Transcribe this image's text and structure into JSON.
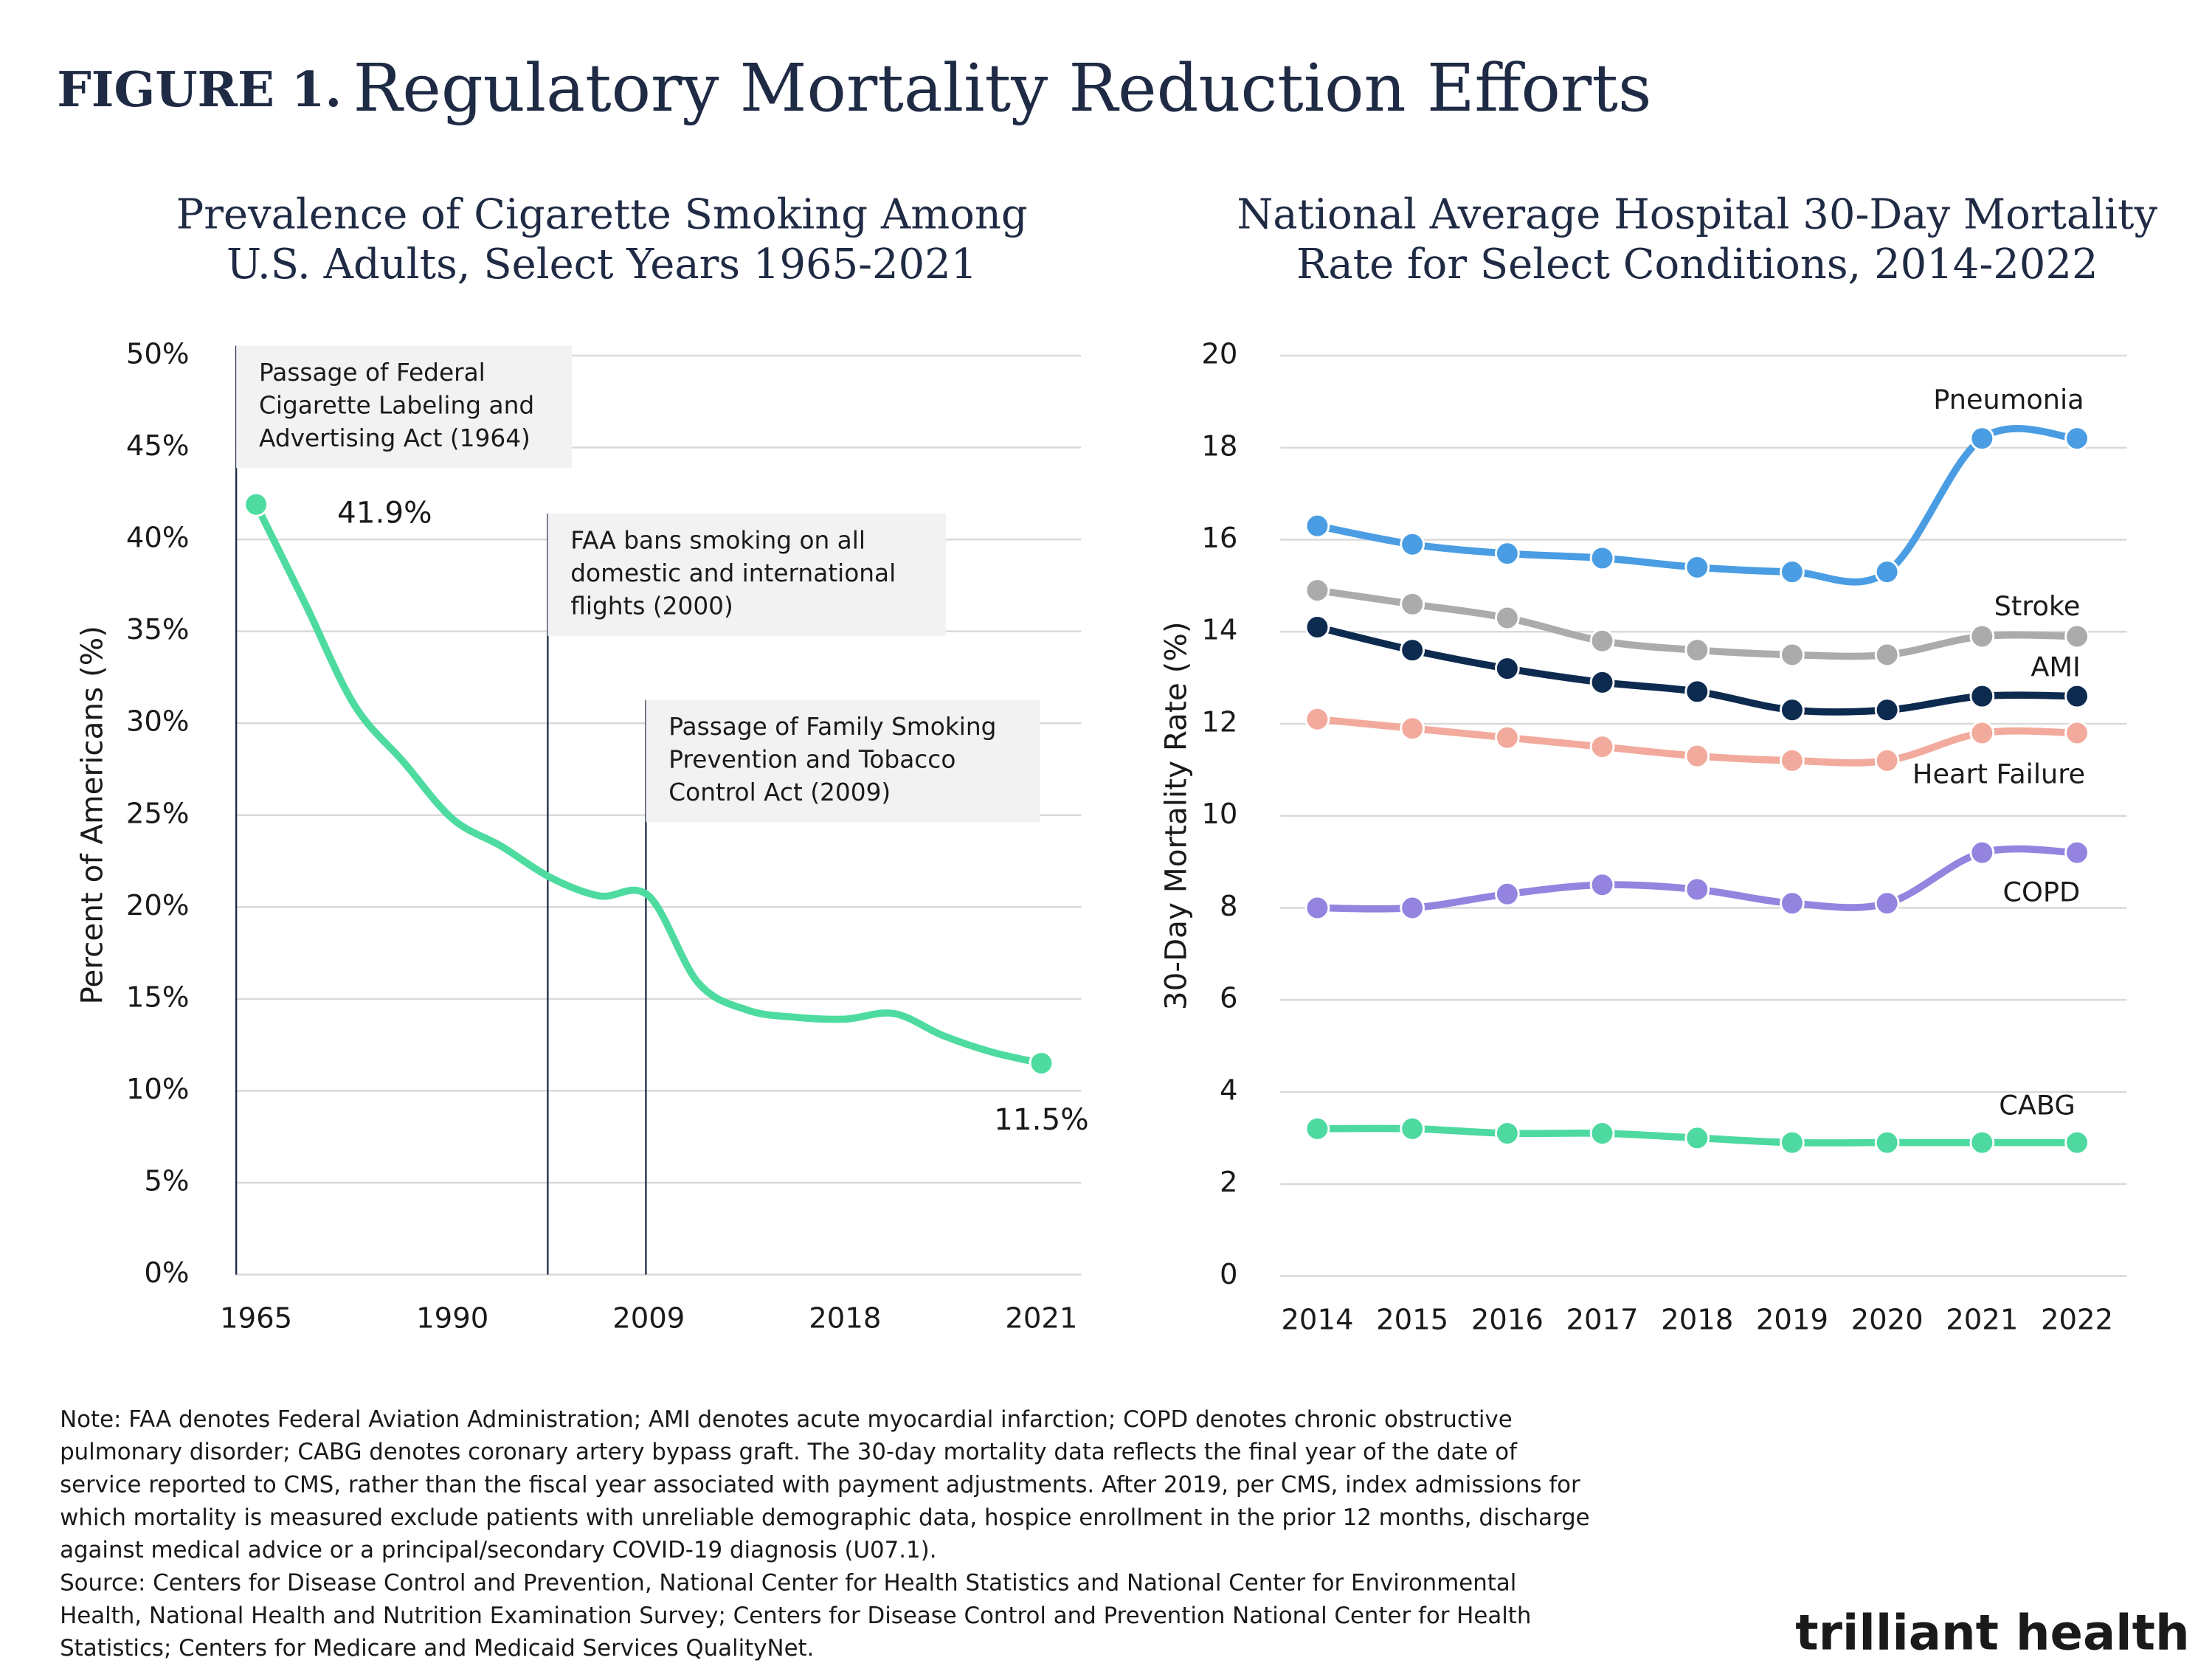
{
  "figure": {
    "label": "FIGURE 1.",
    "title": "Regulatory Mortality Reduction Efforts"
  },
  "chart_data": [
    {
      "type": "line",
      "title": [
        "Prevalence of Cigarette Smoking Among",
        "U.S. Adults, Select Years 1965-2021"
      ],
      "y_label": "Percent of Americans (%)",
      "categories": [
        "1965",
        null,
        null,
        null,
        "1990",
        null,
        null,
        null,
        "2009",
        null,
        null,
        null,
        "2018",
        null,
        null,
        null,
        "2021"
      ],
      "values": [
        41.9,
        36.5,
        31.0,
        27.9,
        24.8,
        23.3,
        21.6,
        20.6,
        20.6,
        15.9,
        14.4,
        14.0,
        13.9,
        14.2,
        13.0,
        12.1,
        11.5
      ],
      "value_labels": [
        "41.9%",
        null,
        null,
        null,
        null,
        null,
        null,
        null,
        null,
        null,
        null,
        null,
        null,
        null,
        null,
        null,
        "11.5%"
      ],
      "color": "#4ddb9f",
      "smooth": true,
      "markers": "ends",
      "grid": true,
      "ylim": [
        0,
        50
      ],
      "yticks": [
        {
          "value": 0,
          "label": "0%"
        },
        {
          "value": 5,
          "label": "5%"
        },
        {
          "value": 10,
          "label": "10%"
        },
        {
          "value": 15,
          "label": "15%"
        },
        {
          "value": 20,
          "label": "20%"
        },
        {
          "value": 25,
          "label": "25%"
        },
        {
          "value": 30,
          "label": "30%"
        },
        {
          "value": 35,
          "label": "35%"
        },
        {
          "value": 40,
          "label": "40%"
        },
        {
          "value": 45,
          "label": "45%"
        },
        {
          "value": 50,
          "label": "50%"
        }
      ],
      "annotations": [
        [
          "Passage of Federal",
          "Cigarette Labeling and",
          "Advertising Act (1964)"
        ],
        [
          "FAA bans smoking on all",
          "domestic and international",
          "flights (2000)"
        ],
        [
          "Passage of Family Smoking",
          "Prevention and Tobacco",
          "Control Act (2009)"
        ]
      ]
    },
    {
      "type": "line",
      "title": [
        "National Average Hospital 30-Day Mortality",
        "Rate for Select Conditions, 2014-2022"
      ],
      "y_label": "30-Day Mortality Rate (%)",
      "categories": [
        "2014",
        "2015",
        "2016",
        "2017",
        "2018",
        "2019",
        "2020",
        "2021",
        "2022"
      ],
      "smooth": true,
      "markers": "all",
      "grid": true,
      "ylim": [
        0,
        20
      ],
      "yticks": [
        0,
        2,
        4,
        6,
        8,
        10,
        12,
        14,
        16,
        18,
        20
      ],
      "series": [
        {
          "name": "Pneumonia",
          "color": "#4a9de3",
          "values": [
            16.3,
            15.9,
            15.7,
            15.6,
            15.4,
            15.3,
            15.3,
            18.2,
            18.2
          ]
        },
        {
          "name": "Stroke",
          "color": "#ababab",
          "values": [
            14.9,
            14.6,
            14.3,
            13.8,
            13.6,
            13.5,
            13.5,
            13.9,
            13.9
          ]
        },
        {
          "name": "AMI",
          "color": "#0d2a4f",
          "values": [
            14.1,
            13.6,
            13.2,
            12.9,
            12.7,
            12.3,
            12.3,
            12.6,
            12.6
          ]
        },
        {
          "name": "Heart Failure",
          "color": "#f2aa9c",
          "values": [
            12.1,
            11.9,
            11.7,
            11.5,
            11.3,
            11.2,
            11.2,
            11.8,
            11.8
          ]
        },
        {
          "name": "COPD",
          "color": "#9484e0",
          "values": [
            8.0,
            8.0,
            8.3,
            8.5,
            8.4,
            8.1,
            8.1,
            9.2,
            9.2
          ]
        },
        {
          "name": "CABG",
          "color": "#4dd9a0",
          "values": [
            3.2,
            3.2,
            3.1,
            3.1,
            3.0,
            2.9,
            2.9,
            2.9,
            2.9
          ]
        }
      ]
    }
  ],
  "note": [
    "Note: FAA denotes Federal Aviation Administration; AMI denotes acute myocardial infarction; COPD denotes chronic obstructive",
    "pulmonary disorder; CABG denotes coronary artery bypass graft. The 30-day mortality data reflects the final year of the date of",
    "service reported to CMS, rather than the fiscal year associated with payment adjustments. After 2019, per CMS, index admissions for",
    "which mortality is measured exclude patients with unreliable demographic data, hospice enrollment in the prior 12 months, discharge",
    "against medical advice or a principal/secondary COVID-19 diagnosis (U07.1)."
  ],
  "source": [
    "Source: Centers for Disease Control and Prevention, National Center for Health Statistics and National Center for Environmental",
    "Health, National Health and Nutrition Examination Survey; Centers for Disease Control and Prevention National Center for Health",
    "Statistics; Centers for Medicare and Medicaid Services QualityNet."
  ],
  "logo": "trilliant health"
}
